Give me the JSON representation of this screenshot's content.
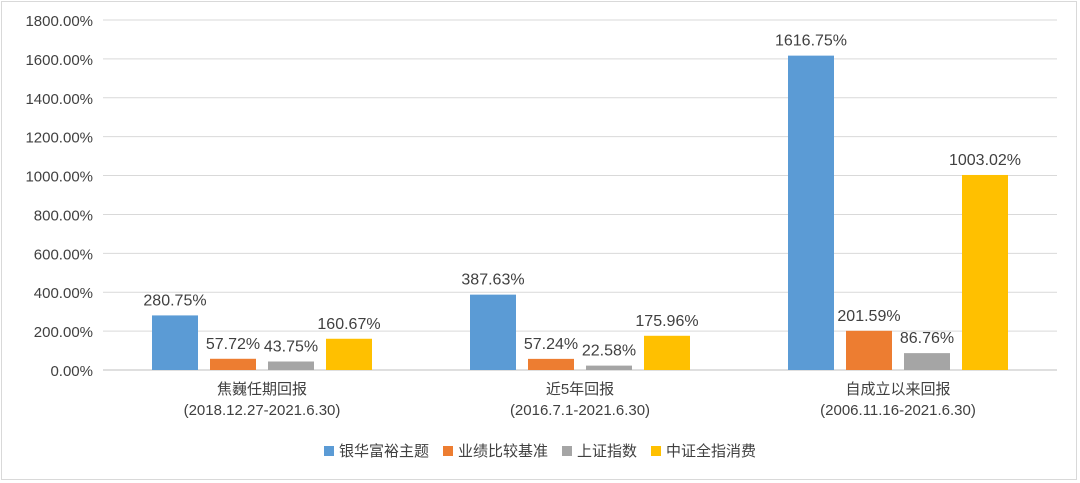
{
  "chart_data": {
    "type": "bar",
    "categories": [
      {
        "line1": "焦巍任期回报",
        "line2": "(2018.12.27-2021.6.30)"
      },
      {
        "line1": "近5年回报",
        "line2": "(2016.7.1-2021.6.30)"
      },
      {
        "line1": "自成立以来回报",
        "line2": "(2006.11.16-2021.6.30)"
      }
    ],
    "series": [
      {
        "name": "银华富裕主题",
        "color": "#5b9bd5",
        "values": [
          280.75,
          387.63,
          1616.75
        ],
        "labels": [
          "280.75%",
          "387.63%",
          "1616.75%"
        ]
      },
      {
        "name": "业绩比较基准",
        "color": "#ed7d31",
        "values": [
          57.72,
          57.24,
          201.59
        ],
        "labels": [
          "57.72%",
          "57.24%",
          "201.59%"
        ]
      },
      {
        "name": "上证指数",
        "color": "#a5a5a5",
        "values": [
          43.75,
          22.58,
          86.76
        ],
        "labels": [
          "43.75%",
          "22.58%",
          "86.76%"
        ]
      },
      {
        "name": "中证全指消费",
        "color": "#ffc000",
        "values": [
          160.67,
          175.96,
          1003.02
        ],
        "labels": [
          "160.67%",
          "175.96%",
          "1003.02%"
        ]
      }
    ],
    "ylim": [
      0,
      1800
    ],
    "yticks": [
      0,
      200,
      400,
      600,
      800,
      1000,
      1200,
      1400,
      1600,
      1800
    ],
    "ytick_labels": [
      "0.00%",
      "200.00%",
      "400.00%",
      "600.00%",
      "800.00%",
      "1000.00%",
      "1200.00%",
      "1400.00%",
      "1600.00%",
      "1800.00%"
    ],
    "grid": true,
    "legend_position": "bottom"
  }
}
